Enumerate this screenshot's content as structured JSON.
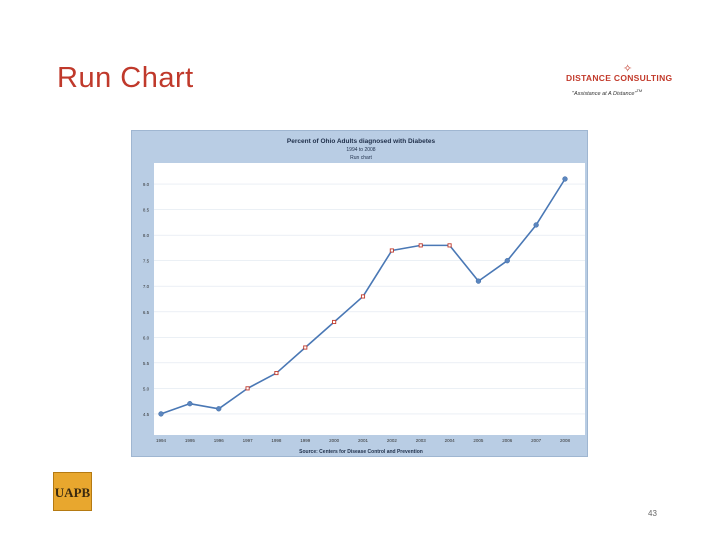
{
  "slide": {
    "title": "Run Chart",
    "page_number": "43"
  },
  "logo": {
    "brand": "DISTANCE CONSULTING",
    "tagline": "\"Assistance at A Distance\"",
    "trademark": "TM",
    "star_icon": "four-point-star-icon",
    "accent": "#c23a2b"
  },
  "uapb_logo": {
    "text": "UAPB",
    "color": "#e8a72e"
  },
  "chart_data": {
    "type": "line",
    "title": "Percent of Ohio Adults diagnosed with Diabetes",
    "subtitle": "1994 to 2008",
    "subtitle2": "Run chart",
    "source": "Source: Centers for Disease Control and Prevention",
    "categories": [
      "1994",
      "1995",
      "1996",
      "1997",
      "1998",
      "1999",
      "2000",
      "2001",
      "2002",
      "2003",
      "2004",
      "2005",
      "2006",
      "2007",
      "2008"
    ],
    "values": [
      4.5,
      4.7,
      4.6,
      5.0,
      5.3,
      5.8,
      6.3,
      6.8,
      7.7,
      7.8,
      7.8,
      7.1,
      7.5,
      8.2,
      9.1
    ],
    "ylim": [
      4.4,
      9.1
    ],
    "ytick_labels": [
      "9.0",
      "8.5",
      "8.0",
      "7.5",
      "7.0",
      "6.5",
      "6.0",
      "5.5",
      "5.0",
      "4.5"
    ],
    "ytick_values": [
      9.0,
      8.5,
      8.0,
      7.5,
      7.0,
      6.5,
      6.0,
      5.5,
      5.0,
      4.5
    ],
    "grid": true,
    "colors": {
      "panel": "#b9cde4",
      "plot_bg": "#ffffff",
      "line": "#4a78b5",
      "marker_blue": "#5b86bf",
      "marker_red": "#c0392b",
      "gridline": "#dfe6ef"
    }
  }
}
